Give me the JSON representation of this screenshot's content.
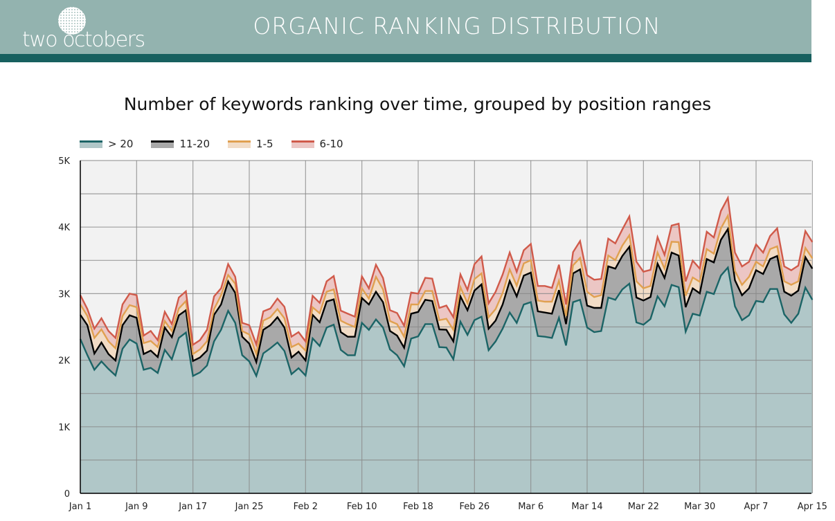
{
  "header": {
    "logo_text": "two octobers",
    "title": "ORGANIC RANKING DISTRIBUTION"
  },
  "colors": {
    "header_bg": "#93b3af",
    "header_bar": "#17605f",
    "gt20_line": "#1b6466",
    "gt20_fill": "#b0c7c8",
    "r11_20_line": "#000000",
    "r11_20_fill": "#a9a9a9",
    "r1_5_line": "#e0a050",
    "r1_5_fill": "#f2dcc6",
    "r6_10_line": "#d05a4a",
    "r6_10_fill": "#ecc6c4",
    "plot_bg": "#f2f2f2",
    "grid": "#8a8a8a"
  },
  "chart_data": {
    "type": "area",
    "stacked": true,
    "title": "Number of keywords ranking over time, grouped by position ranges",
    "xlabel": "",
    "ylabel": "",
    "ylim": [
      0,
      5000
    ],
    "y_ticks": [
      "0",
      "1K",
      "2K",
      "3K",
      "4K",
      "5K"
    ],
    "y_tick_values": [
      0,
      1000,
      2000,
      3000,
      4000,
      5000
    ],
    "x_ticks": [
      "Jan 1",
      "Jan 9",
      "Jan 17",
      "Jan 25",
      "Feb 2",
      "Feb 10",
      "Feb 18",
      "Feb 26",
      "Mar 6",
      "Mar 14",
      "Mar 22",
      "Mar 30",
      "Apr 7",
      "Apr 15"
    ],
    "grid": true,
    "legend_position": "top-left",
    "x": [
      "Jan 1",
      "Jan 2",
      "Jan 3",
      "Jan 4",
      "Jan 5",
      "Jan 6",
      "Jan 7",
      "Jan 8",
      "Jan 9",
      "Jan 10",
      "Jan 11",
      "Jan 12",
      "Jan 13",
      "Jan 14",
      "Jan 15",
      "Jan 16",
      "Jan 17",
      "Jan 18",
      "Jan 19",
      "Jan 20",
      "Jan 21",
      "Jan 22",
      "Jan 23",
      "Jan 24",
      "Jan 25",
      "Jan 26",
      "Jan 27",
      "Jan 28",
      "Jan 29",
      "Jan 30",
      "Jan 31",
      "Feb 1",
      "Feb 2",
      "Feb 3",
      "Feb 4",
      "Feb 5",
      "Feb 6",
      "Feb 7",
      "Feb 8",
      "Feb 9",
      "Feb 10",
      "Feb 11",
      "Feb 12",
      "Feb 13",
      "Feb 14",
      "Feb 15",
      "Feb 16",
      "Feb 17",
      "Feb 18",
      "Feb 19",
      "Feb 20",
      "Feb 21",
      "Feb 22",
      "Feb 23",
      "Feb 24",
      "Feb 25",
      "Feb 26",
      "Feb 27",
      "Feb 28",
      "Mar 1",
      "Mar 2",
      "Mar 3",
      "Mar 4",
      "Mar 5",
      "Mar 6",
      "Mar 7",
      "Mar 8",
      "Mar 9",
      "Mar 10",
      "Mar 11",
      "Mar 12",
      "Mar 13",
      "Mar 14",
      "Mar 15",
      "Mar 16",
      "Mar 17",
      "Mar 18",
      "Mar 19",
      "Mar 20",
      "Mar 21",
      "Mar 22",
      "Mar 23",
      "Mar 24",
      "Mar 25",
      "Mar 26",
      "Mar 27",
      "Mar 28",
      "Mar 29",
      "Mar 30",
      "Mar 31",
      "Apr 1",
      "Apr 2",
      "Apr 3",
      "Apr 4",
      "Apr 5",
      "Apr 6",
      "Apr 7",
      "Apr 8",
      "Apr 9",
      "Apr 10",
      "Apr 11",
      "Apr 12",
      "Apr 13",
      "Apr 14",
      "Apr 15"
    ],
    "series": [
      {
        "name": "> 20",
        "key": "gt20",
        "values": [
          2318,
          2076,
          1857,
          1982,
          1868,
          1771,
          2173,
          2311,
          2249,
          1857,
          1885,
          1809,
          2155,
          2013,
          2335,
          2415,
          1764,
          1816,
          1920,
          2284,
          2457,
          2741,
          2561,
          2076,
          1982,
          1764,
          2103,
          2180,
          2266,
          2138,
          1790,
          1880,
          1770,
          2328,
          2214,
          2491,
          2533,
          2155,
          2075,
          2075,
          2560,
          2456,
          2612,
          2491,
          2162,
          2075,
          1909,
          2325,
          2359,
          2543,
          2543,
          2196,
          2190,
          2013,
          2578,
          2380,
          2602,
          2654,
          2151,
          2283,
          2474,
          2716,
          2560,
          2837,
          2872,
          2363,
          2352,
          2335,
          2637,
          2221,
          2872,
          2907,
          2491,
          2422,
          2439,
          2942,
          2907,
          3063,
          3150,
          2568,
          2533,
          2620,
          2959,
          2810,
          3132,
          3098,
          2429,
          2699,
          2672,
          3028,
          2994,
          3271,
          3392,
          2810,
          2602,
          2675,
          2890,
          2872,
          3070,
          3070,
          2689,
          2561,
          2699,
          3091,
          2907
        ]
      },
      {
        "name": "11-20",
        "key": "r11_20",
        "values": [
          364,
          450,
          243,
          284,
          225,
          225,
          353,
          364,
          388,
          236,
          260,
          239,
          336,
          333,
          340,
          336,
          225,
          225,
          225,
          398,
          381,
          444,
          450,
          277,
          267,
          208,
          354,
          346,
          381,
          353,
          251,
          248,
          226,
          353,
          357,
          392,
          381,
          267,
          277,
          277,
          374,
          381,
          416,
          381,
          277,
          295,
          277,
          374,
          367,
          364,
          347,
          267,
          267,
          270,
          381,
          371,
          444,
          485,
          322,
          312,
          364,
          475,
          398,
          433,
          444,
          371,
          364,
          364,
          416,
          322,
          433,
          457,
          329,
          364,
          347,
          468,
          468,
          502,
          554,
          374,
          364,
          329,
          492,
          426,
          485,
          475,
          367,
          381,
          333,
          492,
          475,
          537,
          579,
          392,
          374,
          405,
          461,
          423,
          450,
          495,
          340,
          409,
          347,
          457,
          468
        ]
      },
      {
        "name": "1-5",
        "key": "r1_5",
        "values": [
          156,
          139,
          235,
          198,
          191,
          184,
          139,
          152,
          159,
          163,
          145,
          149,
          97,
          93,
          101,
          139,
          104,
          121,
          139,
          87,
          138,
          96,
          139,
          86,
          138,
          121,
          138,
          121,
          122,
          139,
          156,
          121,
          149,
          114,
          135,
          146,
          149,
          173,
          191,
          146,
          146,
          87,
          225,
          191,
          149,
          173,
          166,
          139,
          111,
          132,
          149,
          139,
          166,
          173,
          139,
          104,
          173,
          166,
          173,
          173,
          173,
          173,
          163,
          184,
          187,
          163,
          163,
          180,
          139,
          121,
          121,
          173,
          208,
          163,
          191,
          163,
          128,
          156,
          173,
          243,
          184,
          166,
          166,
          139,
          163,
          201,
          173,
          163,
          173,
          149,
          132,
          173,
          201,
          139,
          156,
          173,
          128,
          114,
          149,
          146,
          156,
          163,
          139,
          139,
          156
        ]
      },
      {
        "name": "6-10",
        "key": "r6_10",
        "values": [
          139,
          104,
          139,
          166,
          155,
          155,
          173,
          174,
          181,
          114,
          149,
          104,
          139,
          104,
          166,
          145,
          139,
          139,
          173,
          190,
          104,
          163,
          104,
          122,
          139,
          145,
          139,
          129,
          156,
          173,
          156,
          173,
          138,
          173,
          156,
          156,
          201,
          149,
          156,
          156,
          180,
          156,
          180,
          173,
          163,
          166,
          166,
          180,
          163,
          198,
          187,
          184,
          198,
          191,
          191,
          201,
          225,
          253,
          208,
          260,
          277,
          253,
          208,
          198,
          243,
          218,
          236,
          208,
          243,
          173,
          198,
          253,
          249,
          260,
          243,
          253,
          253,
          243,
          284,
          295,
          249,
          243,
          232,
          208,
          243,
          277,
          215,
          253,
          198,
          260,
          243,
          260,
          267,
          277,
          277,
          225,
          260,
          208,
          198,
          270,
          225,
          218,
          236,
          253,
          243
        ]
      }
    ]
  }
}
